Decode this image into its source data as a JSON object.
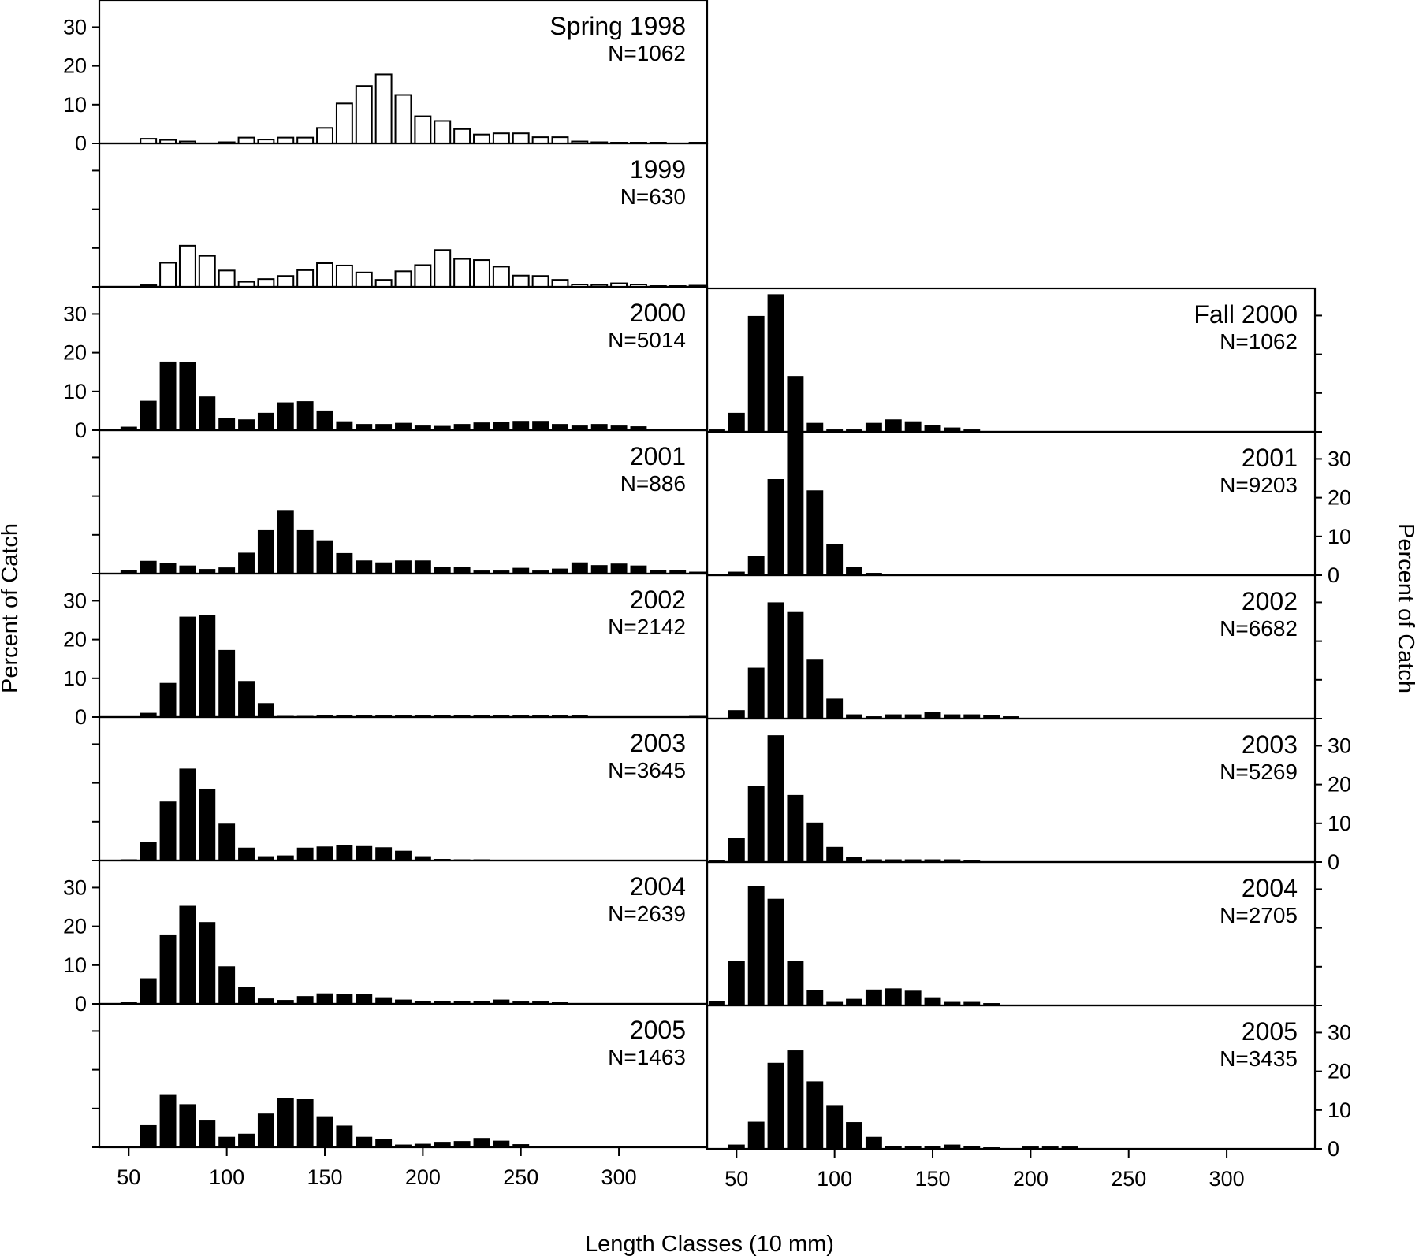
{
  "figure": {
    "ylabel": "Percent of Catch",
    "xlabel": "Length Classes (10 mm)",
    "x_ticks": [
      "50",
      "100",
      "150",
      "200",
      "250",
      "300"
    ],
    "y_ticks": [
      "0",
      "10",
      "20",
      "30"
    ]
  },
  "chart_data": [
    {
      "id": "spring-1998",
      "type": "bar",
      "title": "Spring 1998",
      "n_label": "N=1062",
      "season": "spring",
      "style": "open",
      "ylim": [
        0,
        37
      ],
      "y_ticks_labeled": true,
      "xlim": [
        35,
        345
      ],
      "x": [
        60,
        70,
        80,
        90,
        100,
        110,
        120,
        130,
        140,
        150,
        160,
        170,
        180,
        190,
        200,
        210,
        220,
        230,
        240,
        250,
        260,
        270,
        280,
        290,
        300,
        310,
        320,
        330,
        340
      ],
      "values": [
        1.2,
        0.9,
        0.5,
        0,
        0.3,
        1.5,
        1.0,
        1.5,
        1.5,
        4.0,
        10.3,
        14.8,
        17.8,
        12.5,
        7.0,
        5.8,
        3.7,
        2.3,
        2.6,
        2.6,
        1.6,
        1.6,
        0.5,
        0.3,
        0.2,
        0.2,
        0.2,
        0,
        0.2
      ]
    },
    {
      "id": "spring-1999",
      "type": "bar",
      "title": "1999",
      "n_label": "N=630",
      "season": "spring",
      "style": "open",
      "ylim": [
        0,
        37
      ],
      "y_ticks_labeled": false,
      "xlim": [
        35,
        345
      ],
      "x": [
        60,
        70,
        80,
        90,
        100,
        110,
        120,
        130,
        140,
        150,
        160,
        170,
        180,
        190,
        200,
        210,
        220,
        230,
        240,
        250,
        260,
        270,
        280,
        290,
        300,
        310,
        320,
        330,
        340
      ],
      "values": [
        0.4,
        6.2,
        10.6,
        8.0,
        4.2,
        1.3,
        2.0,
        2.8,
        4.3,
        6.1,
        5.5,
        3.7,
        1.8,
        4.0,
        5.6,
        9.5,
        7.2,
        6.9,
        5.2,
        2.9,
        2.8,
        1.8,
        0.6,
        0.5,
        0.9,
        0.6,
        0.2,
        0.2,
        0.3
      ]
    },
    {
      "id": "spring-2000",
      "type": "bar",
      "title": "2000",
      "n_label": "N=5014",
      "season": "spring",
      "style": "filled",
      "ylim": [
        0,
        37
      ],
      "y_ticks_labeled": true,
      "xlim": [
        35,
        345
      ],
      "x": [
        50,
        60,
        70,
        80,
        90,
        100,
        110,
        120,
        130,
        140,
        150,
        160,
        170,
        180,
        190,
        200,
        210,
        220,
        230,
        240,
        250,
        260,
        270,
        280,
        290,
        300,
        310
      ],
      "values": [
        0.8,
        7.5,
        17.6,
        17.4,
        8.6,
        3.0,
        2.7,
        4.4,
        7.1,
        7.4,
        5.0,
        2.2,
        1.5,
        1.5,
        1.8,
        1.1,
        1.0,
        1.5,
        1.9,
        2.0,
        2.3,
        2.3,
        1.5,
        1.1,
        1.5,
        1.1,
        0.9
      ]
    },
    {
      "id": "spring-2001",
      "type": "bar",
      "title": "2001",
      "n_label": "N=886",
      "season": "spring",
      "style": "filled",
      "ylim": [
        0,
        37
      ],
      "y_ticks_labeled": false,
      "xlim": [
        35,
        345
      ],
      "x": [
        50,
        60,
        70,
        80,
        90,
        100,
        110,
        120,
        130,
        140,
        150,
        160,
        170,
        180,
        190,
        200,
        210,
        220,
        230,
        240,
        250,
        260,
        270,
        280,
        290,
        300,
        310,
        320,
        330,
        340
      ],
      "values": [
        0.8,
        3.2,
        2.6,
        2.0,
        1.1,
        1.5,
        5.3,
        11.3,
        16.3,
        11.3,
        8.5,
        5.2,
        3.3,
        2.8,
        3.3,
        3.3,
        1.7,
        1.6,
        0.7,
        0.7,
        1.4,
        0.7,
        1.2,
        2.8,
        2.1,
        2.5,
        2.0,
        0.8,
        0.8,
        0.4
      ]
    },
    {
      "id": "spring-2002",
      "type": "bar",
      "title": "2002",
      "n_label": "N=2142",
      "season": "spring",
      "style": "filled",
      "ylim": [
        0,
        37
      ],
      "y_ticks_labeled": true,
      "xlim": [
        35,
        345
      ],
      "x": [
        60,
        70,
        80,
        90,
        100,
        110,
        120,
        130,
        140,
        150,
        160,
        170,
        180,
        190,
        200,
        210,
        220,
        230,
        240,
        250,
        260,
        270,
        280,
        290,
        300,
        310,
        320,
        330,
        340
      ],
      "values": [
        1.0,
        8.7,
        25.8,
        26.2,
        17.2,
        9.2,
        3.5,
        0.2,
        0.2,
        0.3,
        0.3,
        0.3,
        0.3,
        0.3,
        0.3,
        0.5,
        0.5,
        0.3,
        0.3,
        0.3,
        0.3,
        0.3,
        0.3,
        0.1,
        0.1,
        0.1,
        0.1,
        0.1,
        0.2
      ]
    },
    {
      "id": "spring-2003",
      "type": "bar",
      "title": "2003",
      "n_label": "N=3645",
      "season": "spring",
      "style": "filled",
      "ylim": [
        0,
        37
      ],
      "y_ticks_labeled": false,
      "xlim": [
        35,
        345
      ],
      "x": [
        50,
        60,
        70,
        80,
        90,
        100,
        110,
        120,
        130,
        140,
        150,
        160,
        170,
        180,
        190,
        200,
        210,
        220,
        230
      ],
      "values": [
        0.2,
        4.6,
        15.1,
        23.6,
        18.4,
        9.4,
        3.2,
        1.0,
        1.2,
        3.2,
        3.5,
        3.8,
        3.6,
        3.3,
        2.4,
        1.0,
        0.3,
        0.2,
        0.2
      ]
    },
    {
      "id": "spring-2004",
      "type": "bar",
      "title": "2004",
      "n_label": "N=2639",
      "season": "spring",
      "style": "filled",
      "ylim": [
        0,
        37
      ],
      "y_ticks_labeled": true,
      "xlim": [
        35,
        345
      ],
      "x": [
        50,
        60,
        70,
        80,
        90,
        100,
        110,
        120,
        130,
        140,
        150,
        160,
        170,
        180,
        190,
        200,
        210,
        220,
        230,
        240,
        250,
        260,
        270
      ],
      "values": [
        0.3,
        6.5,
        17.8,
        25.2,
        21.0,
        9.6,
        4.2,
        1.3,
        0.9,
        1.9,
        2.6,
        2.5,
        2.5,
        1.6,
        1.0,
        0.6,
        0.6,
        0.6,
        0.6,
        1.0,
        0.5,
        0.5,
        0.3
      ]
    },
    {
      "id": "spring-2005",
      "type": "bar",
      "title": "2005",
      "n_label": "N=1463",
      "season": "spring",
      "style": "filled",
      "ylim": [
        0,
        37
      ],
      "y_ticks_labeled": false,
      "xlim": [
        35,
        345
      ],
      "x": [
        50,
        60,
        70,
        80,
        90,
        100,
        110,
        120,
        130,
        140,
        150,
        160,
        170,
        180,
        190,
        200,
        210,
        220,
        230,
        240,
        250,
        260,
        270,
        280,
        290,
        300
      ],
      "values": [
        0.3,
        5.6,
        13.4,
        11.0,
        6.8,
        2.6,
        3.4,
        8.6,
        12.7,
        12.3,
        7.9,
        5.5,
        2.6,
        2.0,
        0.6,
        0.8,
        1.3,
        1.5,
        2.3,
        1.6,
        0.7,
        0.3,
        0.3,
        0.3,
        0,
        0.3
      ]
    },
    {
      "id": "fall-2000",
      "type": "bar",
      "title": "Fall 2000",
      "n_label": "N=1062",
      "season": "fall",
      "style": "filled",
      "ylim": [
        0,
        37
      ],
      "y_ticks_labeled": false,
      "xlim": [
        35,
        345
      ],
      "x": [
        40,
        50,
        60,
        70,
        80,
        90,
        100,
        110,
        120,
        130,
        140,
        150,
        160,
        170
      ],
      "values": [
        0.5,
        4.8,
        29.8,
        35.4,
        14.3,
        2.2,
        0.5,
        0.5,
        2.2,
        3.1,
        2.6,
        1.6,
        1.0,
        0.5
      ]
    },
    {
      "id": "fall-2001",
      "type": "bar",
      "title": "2001",
      "n_label": "N=9203",
      "season": "fall",
      "style": "filled",
      "ylim": [
        0,
        37
      ],
      "y_ticks_labeled": true,
      "xlim": [
        35,
        345
      ],
      "x": [
        50,
        60,
        70,
        80,
        90,
        100,
        110,
        120
      ],
      "values": [
        0.8,
        4.8,
        24.7,
        37.0,
        21.8,
        7.9,
        2.1,
        0.5
      ]
    },
    {
      "id": "fall-2002",
      "type": "bar",
      "title": "2002",
      "n_label": "N=6682",
      "season": "fall",
      "style": "filled",
      "ylim": [
        0,
        37
      ],
      "y_ticks_labeled": false,
      "xlim": [
        35,
        345
      ],
      "x": [
        50,
        60,
        70,
        80,
        90,
        100,
        110,
        120,
        130,
        140,
        150,
        160,
        170,
        180,
        190
      ],
      "values": [
        2.1,
        13.0,
        29.9,
        27.4,
        15.3,
        5.1,
        1.0,
        0.5,
        1.0,
        1.0,
        1.6,
        1.0,
        1.0,
        0.8,
        0.5
      ]
    },
    {
      "id": "fall-2003",
      "type": "bar",
      "title": "2003",
      "n_label": "N=5269",
      "season": "fall",
      "style": "filled",
      "ylim": [
        0,
        37
      ],
      "y_ticks_labeled": true,
      "xlim": [
        35,
        345
      ],
      "x": [
        40,
        50,
        60,
        70,
        80,
        90,
        100,
        110,
        120,
        130,
        140,
        150,
        160,
        170
      ],
      "values": [
        0.3,
        6.1,
        19.6,
        32.6,
        17.2,
        10.1,
        3.8,
        1.2,
        0.6,
        0.6,
        0.6,
        0.6,
        0.6,
        0.3
      ]
    },
    {
      "id": "fall-2004",
      "type": "bar",
      "title": "2004",
      "n_label": "N=2705",
      "season": "fall",
      "style": "filled",
      "ylim": [
        0,
        37
      ],
      "y_ticks_labeled": false,
      "xlim": [
        35,
        345
      ],
      "x": [
        40,
        50,
        60,
        70,
        80,
        90,
        100,
        110,
        120,
        130,
        140,
        150,
        160,
        170,
        180
      ],
      "values": [
        1.1,
        11.4,
        30.8,
        27.4,
        11.4,
        3.8,
        0.8,
        1.6,
        4.0,
        4.3,
        3.7,
        2.0,
        0.8,
        0.8,
        0.5
      ]
    },
    {
      "id": "fall-2005",
      "type": "bar",
      "title": "2005",
      "n_label": "N=3435",
      "season": "fall",
      "style": "filled",
      "ylim": [
        0,
        37
      ],
      "y_ticks_labeled": true,
      "xlim": [
        35,
        345
      ],
      "x": [
        50,
        60,
        70,
        80,
        90,
        100,
        110,
        120,
        130,
        140,
        150,
        160,
        170,
        180,
        190,
        200,
        210,
        220
      ],
      "values": [
        1.0,
        6.9,
        22.1,
        25.3,
        17.3,
        11.2,
        6.8,
        3.0,
        0.6,
        0.6,
        0.6,
        1.0,
        0.6,
        0.3,
        0.1,
        0.5,
        0.5,
        0.5
      ]
    }
  ]
}
